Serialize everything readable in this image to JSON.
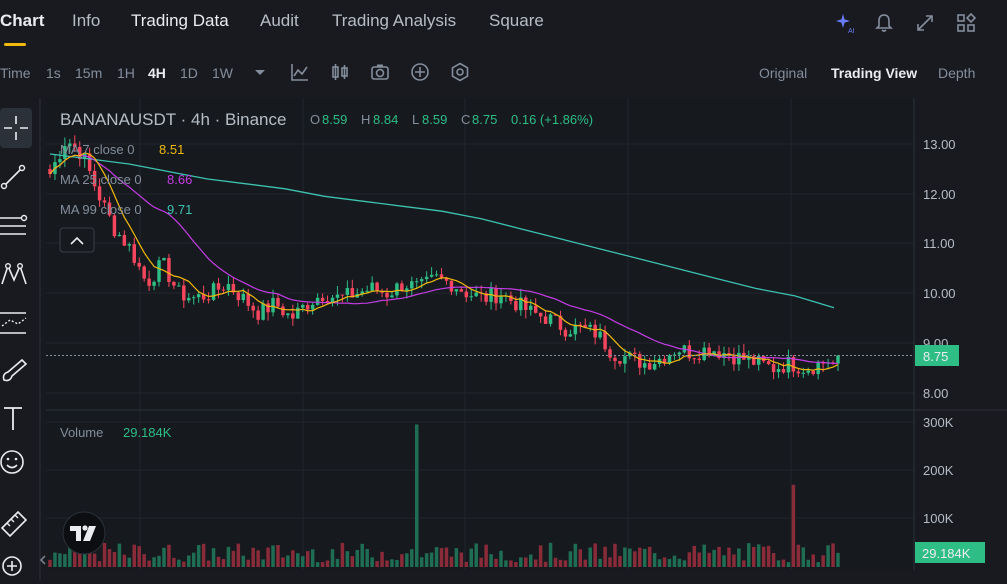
{
  "nav": {
    "tabs": [
      {
        "label": "Chart"
      },
      {
        "label": "Info"
      },
      {
        "label": "Trading Data"
      },
      {
        "label": "Audit"
      },
      {
        "label": "Trading Analysis"
      },
      {
        "label": "Square"
      }
    ],
    "ai_badge": "AI"
  },
  "toolbar": {
    "time_label": "Time",
    "intervals": [
      "1s",
      "15m",
      "1H",
      "4H",
      "1D",
      "1W"
    ],
    "active_interval": "4H",
    "views": [
      "Original",
      "Trading View",
      "Depth"
    ],
    "active_view": "Trading View"
  },
  "legend": {
    "symbol": "BANANAUSDT · 4h · Binance",
    "o_label": "O",
    "o_value": "8.59",
    "h_label": "H",
    "h_value": "8.84",
    "l_label": "L",
    "l_value": "8.59",
    "c_label": "C",
    "c_value": "8.75",
    "change": "0.16 (+1.86%)",
    "ma7_label": "MA 7 close 0",
    "ma7_value": "8.51",
    "ma25_label": "MA 25 close 0",
    "ma25_value": "8.66",
    "ma99_label": "MA 99 close 0",
    "ma99_value": "9.71",
    "volume_label": "Volume",
    "volume_value": "29.184K"
  },
  "price_axis": {
    "ticks": [
      "13.00",
      "12.00",
      "11.00",
      "10.00",
      "9.00",
      "8.00"
    ],
    "last_price": "8.75"
  },
  "volume_axis": {
    "ticks": [
      "300K",
      "200K",
      "100K"
    ],
    "last_volume": "29.184K"
  },
  "colors": {
    "up": "#2ebd85",
    "down": "#f6465d",
    "ma7": "#f0b90b",
    "ma25": "#c43ce6",
    "ma99": "#3dc2b0",
    "accent": "#f0b90b"
  },
  "chart_data": {
    "type": "candlestick",
    "interval": "4h",
    "ylim": [
      7.7,
      13.6
    ],
    "volume_ylim": [
      0,
      310
    ],
    "ohlc_segment_closes": [
      12.4,
      13.1,
      12.8,
      12.0,
      11.3,
      10.9,
      10.2,
      10.6,
      10.0,
      9.9,
      10.0,
      10.2,
      9.9,
      9.6,
      9.8,
      9.5,
      9.8,
      10.0,
      9.9,
      10.0,
      10.1,
      10.0,
      10.2,
      10.1,
      10.3,
      10.2,
      10.0,
      9.9,
      10.0,
      9.8,
      9.6,
      9.5,
      9.3,
      9.3,
      9.2,
      8.8,
      8.7,
      8.6,
      8.7,
      8.9,
      8.8,
      8.9,
      8.8,
      8.7,
      8.6,
      8.5,
      8.6,
      8.5,
      8.6,
      8.75
    ],
    "ma99": [
      12.8,
      12.7,
      12.6,
      12.45,
      12.3,
      12.2,
      12.1,
      11.95,
      11.85,
      11.75,
      11.65,
      11.5,
      11.3,
      11.1,
      10.9,
      10.7,
      10.5,
      10.3,
      10.1,
      9.95,
      9.71
    ],
    "volume_peak_k": 295,
    "volume_secondary_peak_k": 170
  }
}
